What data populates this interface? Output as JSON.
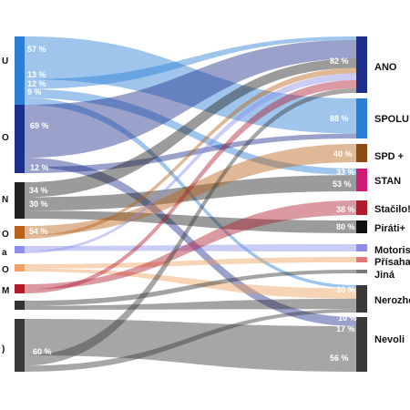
{
  "chart_data": {
    "type": "sankey",
    "title": "",
    "source_nodes": [
      {
        "label": "U",
        "color": "#2a7fd4"
      },
      {
        "label": "O",
        "color": "#1f2f8c"
      },
      {
        "label": "N",
        "color": "#222222"
      },
      {
        "label": "O",
        "color": "#b8621b"
      },
      {
        "label": "a",
        "color": "#8a8ee8"
      },
      {
        "label": "O",
        "color": "#f0a060"
      },
      {
        "label": "M",
        "color": "#b01c2e"
      },
      {
        "label": "",
        "color": "#333333"
      },
      {
        "label": ")",
        "color": "#3a3a3a"
      }
    ],
    "target_nodes": [
      {
        "label": "ANO",
        "color": "#1f2f8c"
      },
      {
        "label": "SPOLU",
        "color": "#2a7fd4"
      },
      {
        "label": "SPD +",
        "color": "#8a4a14"
      },
      {
        "label": "STAN",
        "color": "#d01c74"
      },
      {
        "label": "Stačilo!",
        "color": "#b01c2e"
      },
      {
        "label": "Piráti+",
        "color": "#111111"
      },
      {
        "label": "Motoris",
        "color": "#8a8ee8"
      },
      {
        "label": "Přísaha",
        "color": "#e07a7a"
      },
      {
        "label": "Jiná",
        "color": "#777777"
      },
      {
        "label": "Nerozhc",
        "color": "#3a3a3a"
      },
      {
        "label": "Nevoli",
        "color": "#3a3a3a"
      }
    ],
    "source_percent_labels": [
      {
        "node": 0,
        "text": "57 %"
      },
      {
        "node": 0,
        "text": "13 %"
      },
      {
        "node": 0,
        "text": "12 %"
      },
      {
        "node": 0,
        "text": "9 %"
      },
      {
        "node": 1,
        "text": "69 %"
      },
      {
        "node": 1,
        "text": "12 %"
      },
      {
        "node": 2,
        "text": "34 %"
      },
      {
        "node": 2,
        "text": "30 %"
      },
      {
        "node": 3,
        "text": "54 %"
      },
      {
        "node": 8,
        "text": "60 %"
      }
    ],
    "target_percent_labels": [
      {
        "node": 0,
        "text": "82 %"
      },
      {
        "node": 1,
        "text": "88 %"
      },
      {
        "node": 2,
        "text": "40 %"
      },
      {
        "node": 3,
        "text": "33 %"
      },
      {
        "node": 3,
        "text": "53 %"
      },
      {
        "node": 4,
        "text": "38 %"
      },
      {
        "node": 5,
        "text": "80 %"
      },
      {
        "node": 9,
        "text": "30 %"
      },
      {
        "node": 10,
        "text": "10 %"
      },
      {
        "node": 10,
        "text": "17 %"
      },
      {
        "node": 10,
        "text": "56 %"
      }
    ],
    "flows": [
      {
        "from": 0,
        "to": 1,
        "share": 57
      },
      {
        "from": 0,
        "to": 0,
        "share": 13
      },
      {
        "from": 0,
        "to": 3,
        "share": 12
      },
      {
        "from": 0,
        "to": 9,
        "share": 9
      },
      {
        "from": 1,
        "to": 0,
        "share": 69
      },
      {
        "from": 1,
        "to": 10,
        "share": 12
      },
      {
        "from": 1,
        "to": 1,
        "share": 8
      },
      {
        "from": 2,
        "to": 0,
        "share": 34
      },
      {
        "from": 2,
        "to": 3,
        "share": 30
      },
      {
        "from": 2,
        "to": 5,
        "share": 18
      },
      {
        "from": 3,
        "to": 2,
        "share": 54
      },
      {
        "from": 3,
        "to": 0,
        "share": 20
      },
      {
        "from": 4,
        "to": 6,
        "share": 50
      },
      {
        "from": 4,
        "to": 0,
        "share": 25
      },
      {
        "from": 5,
        "to": 7,
        "share": 45
      },
      {
        "from": 5,
        "to": 9,
        "share": 30
      },
      {
        "from": 6,
        "to": 4,
        "share": 38
      },
      {
        "from": 6,
        "to": 0,
        "share": 30
      },
      {
        "from": 7,
        "to": 8,
        "share": 40
      },
      {
        "from": 7,
        "to": 9,
        "share": 30
      },
      {
        "from": 8,
        "to": 10,
        "share": 60
      },
      {
        "from": 8,
        "to": 0,
        "share": 17
      },
      {
        "from": 8,
        "to": 9,
        "share": 10
      }
    ]
  }
}
